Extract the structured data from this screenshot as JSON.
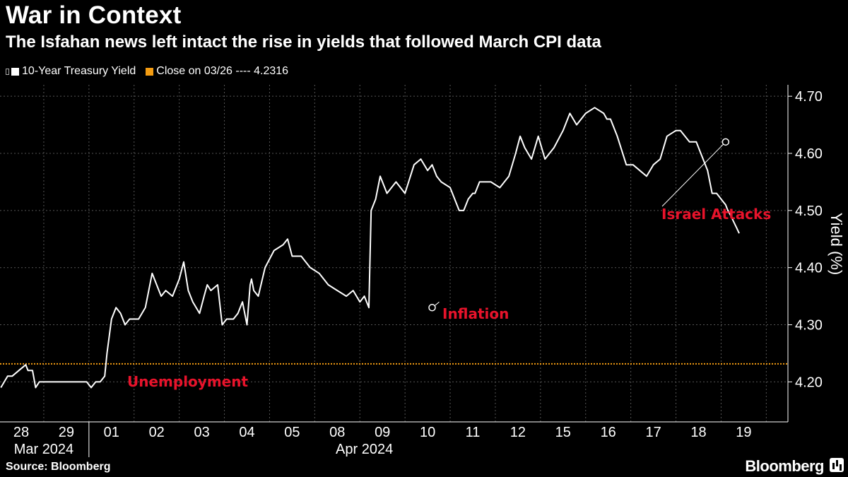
{
  "header": {
    "title": "War in Context",
    "subtitle": "The Isfahan news left intact the rise in yields that followed March CPI data"
  },
  "legend": {
    "series_label": "10-Year Treasury Yield",
    "reference_label": "Close on 03/26 ---- 4.2316"
  },
  "footer": {
    "source": "Source: Bloomberg",
    "brand": "Bloomberg"
  },
  "colors": {
    "series": "#ffffff",
    "reference": "#f39c12",
    "annotation": "#e8132b",
    "grid": "#555555",
    "background": "#000000"
  },
  "chart_data": {
    "type": "line",
    "ylabel": "Yield (%)",
    "ylim": [
      4.13,
      4.72
    ],
    "yticks": [
      4.2,
      4.3,
      4.4,
      4.5,
      4.6,
      4.7
    ],
    "reference_line": {
      "label": "Close on 03/26",
      "value": 4.2316
    },
    "x_ticks": [
      "28",
      "29",
      "01",
      "02",
      "03",
      "04",
      "05",
      "08",
      "09",
      "10",
      "11",
      "12",
      "15",
      "16",
      "17",
      "18",
      "19"
    ],
    "month_labels": [
      {
        "label": "Mar 2024",
        "at_index": 0.5
      },
      {
        "label": "Apr 2024",
        "at_index": 7.6
      }
    ],
    "annotations": [
      {
        "label": "Unemployment",
        "x": 1.7,
        "y": 4.21
      },
      {
        "label": "Inflation",
        "x": 9.1,
        "y": 4.33
      },
      {
        "label": "Israel Attacks",
        "x": 15.6,
        "y": 4.62
      }
    ],
    "series": [
      {
        "name": "10-Year Treasury Yield",
        "x": [
          -0.45,
          -0.3,
          -0.2,
          -0.05,
          0.1,
          0.15,
          0.25,
          0.32,
          0.4,
          0.5,
          0.7,
          1.0,
          1.3,
          1.45,
          1.55,
          1.65,
          1.75,
          1.85,
          1.9,
          2.0,
          2.1,
          2.2,
          2.3,
          2.4,
          2.55,
          2.6,
          2.75,
          2.9,
          3.05,
          3.1,
          3.2,
          3.35,
          3.5,
          3.6,
          3.7,
          3.8,
          3.95,
          4.05,
          4.12,
          4.2,
          4.35,
          4.45,
          4.55,
          4.7,
          4.8,
          4.9,
          5.0,
          5.07,
          5.1,
          5.15,
          5.25,
          5.4,
          5.6,
          5.8,
          5.9,
          6.0,
          6.2,
          6.4,
          6.6,
          6.8,
          7.0,
          7.2,
          7.35,
          7.5,
          7.6,
          7.7,
          7.72,
          7.75,
          7.85,
          7.95,
          8.1,
          8.3,
          8.5,
          8.7,
          8.85,
          9.0,
          9.1,
          9.2,
          9.3,
          9.5,
          9.7,
          9.8,
          9.9,
          10.0,
          10.05,
          10.15,
          10.4,
          10.6,
          10.8,
          10.95,
          11.05,
          11.15,
          11.3,
          11.45,
          11.6,
          11.8,
          12.0,
          12.15,
          12.3,
          12.5,
          12.7,
          12.9,
          12.97,
          13.05,
          13.2,
          13.4,
          13.55,
          13.7,
          13.85,
          14.0,
          14.15,
          14.3,
          14.5,
          14.6,
          14.8,
          14.95,
          15.05,
          15.2,
          15.3,
          15.4,
          15.5,
          15.6,
          15.65,
          15.72,
          15.78,
          15.84,
          15.9
        ],
        "y": [
          4.19,
          4.21,
          4.21,
          4.22,
          4.23,
          4.22,
          4.22,
          4.19,
          4.2,
          4.2,
          4.2,
          4.2,
          4.2,
          4.2,
          4.19,
          4.2,
          4.2,
          4.21,
          4.25,
          4.31,
          4.33,
          4.32,
          4.3,
          4.31,
          4.31,
          4.31,
          4.33,
          4.39,
          4.36,
          4.35,
          4.36,
          4.35,
          4.38,
          4.41,
          4.36,
          4.34,
          4.32,
          4.35,
          4.37,
          4.36,
          4.37,
          4.3,
          4.31,
          4.31,
          4.32,
          4.34,
          4.3,
          4.37,
          4.38,
          4.36,
          4.35,
          4.4,
          4.43,
          4.44,
          4.45,
          4.42,
          4.42,
          4.4,
          4.39,
          4.37,
          4.36,
          4.35,
          4.36,
          4.34,
          4.35,
          4.33,
          4.4,
          4.5,
          4.52,
          4.56,
          4.53,
          4.55,
          4.53,
          4.58,
          4.59,
          4.57,
          4.58,
          4.56,
          4.55,
          4.54,
          4.5,
          4.5,
          4.52,
          4.53,
          4.53,
          4.55,
          4.55,
          4.54,
          4.56,
          4.6,
          4.63,
          4.61,
          4.59,
          4.63,
          4.59,
          4.61,
          4.64,
          4.67,
          4.65,
          4.67,
          4.68,
          4.67,
          4.66,
          4.66,
          4.63,
          4.58,
          4.58,
          4.57,
          4.56,
          4.58,
          4.59,
          4.63,
          4.64,
          4.64,
          4.62,
          4.62,
          4.6,
          4.57,
          4.53,
          4.53,
          4.52,
          4.51,
          4.5,
          4.49,
          4.48,
          4.47,
          4.46
        ]
      }
    ]
  }
}
